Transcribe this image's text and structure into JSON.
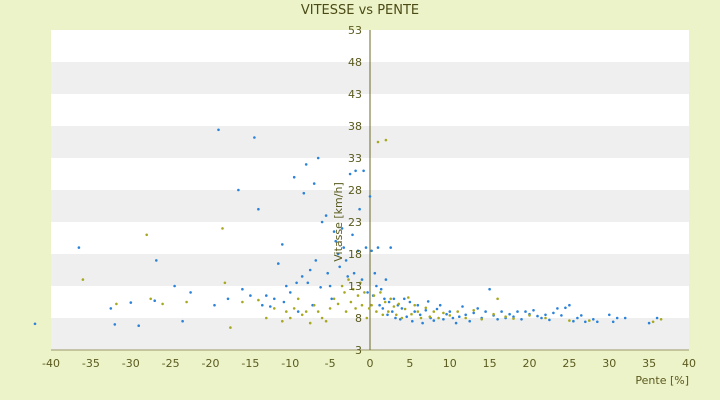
{
  "chart_data": {
    "type": "scatter",
    "title": "VITESSE vs PENTE",
    "xlabel": "Pente [%]",
    "ylabel": "Vitasse [km/h]",
    "xlim": [
      -40,
      40
    ],
    "ylim": [
      3,
      53
    ],
    "x_ticks": [
      -40,
      -35,
      -30,
      -25,
      -20,
      -15,
      -10,
      -5,
      0,
      5,
      10,
      15,
      20,
      25,
      30,
      35,
      40
    ],
    "y_ticks": [
      3,
      8,
      13,
      18,
      23,
      28,
      33,
      38,
      43,
      48,
      53
    ],
    "grid": "horizontal-bands",
    "legend": "none",
    "series": [
      {
        "color": "#2b82d9",
        "points": [
          [
            -42,
            7.1
          ],
          [
            -36.5,
            19
          ],
          [
            -32.5,
            9.5
          ],
          [
            -32,
            7
          ],
          [
            -30,
            10.4
          ],
          [
            -29,
            6.8
          ],
          [
            -27,
            10.7
          ],
          [
            -26.8,
            17
          ],
          [
            -24.5,
            13
          ],
          [
            -23.5,
            7.5
          ],
          [
            -22.5,
            12
          ],
          [
            -19.5,
            10
          ],
          [
            -19,
            37.4
          ],
          [
            -17.8,
            11
          ],
          [
            -16.5,
            28
          ],
          [
            -16,
            12.5
          ],
          [
            -15,
            11.5
          ],
          [
            -14.5,
            36.2
          ],
          [
            -14,
            25
          ],
          [
            -13.5,
            10
          ],
          [
            -13,
            11.5
          ],
          [
            -12.5,
            9.8
          ],
          [
            -12,
            11
          ],
          [
            -11.5,
            16.5
          ],
          [
            -11,
            19.5
          ],
          [
            -10.8,
            10.5
          ],
          [
            -10.5,
            13
          ],
          [
            -10,
            12
          ],
          [
            -9.5,
            30
          ],
          [
            -9.2,
            13.5
          ],
          [
            -9,
            9
          ],
          [
            -8.5,
            14.5
          ],
          [
            -8.3,
            27.5
          ],
          [
            -8,
            32
          ],
          [
            -7.8,
            13.5
          ],
          [
            -7.5,
            15.5
          ],
          [
            -7.2,
            10
          ],
          [
            -7,
            29
          ],
          [
            -6.8,
            17
          ],
          [
            -6.5,
            33
          ],
          [
            -6.2,
            12.8
          ],
          [
            -6,
            23
          ],
          [
            -5.5,
            24
          ],
          [
            -5.3,
            15
          ],
          [
            -5,
            13
          ],
          [
            -4.8,
            11
          ],
          [
            -4.5,
            21.5
          ],
          [
            -4.3,
            20
          ],
          [
            -4,
            18
          ],
          [
            -3.8,
            16
          ],
          [
            -3.5,
            22
          ],
          [
            -3.3,
            19
          ],
          [
            -3,
            17
          ],
          [
            -2.8,
            14.5
          ],
          [
            -2.5,
            30.5
          ],
          [
            -2.2,
            21
          ],
          [
            -2,
            15
          ],
          [
            -1.8,
            31
          ],
          [
            -1.5,
            18.5
          ],
          [
            -1.3,
            25
          ],
          [
            -1,
            14
          ],
          [
            -0.8,
            31
          ],
          [
            -0.5,
            19
          ],
          [
            -0.3,
            12
          ],
          [
            0,
            27
          ],
          [
            0.2,
            18.5
          ],
          [
            0.4,
            11.5
          ],
          [
            0.6,
            15
          ],
          [
            0.8,
            13
          ],
          [
            1,
            19
          ],
          [
            1.2,
            10
          ],
          [
            1.4,
            12.5
          ],
          [
            1.6,
            9.5
          ],
          [
            1.8,
            11
          ],
          [
            2,
            14
          ],
          [
            2.2,
            8.5
          ],
          [
            2.4,
            10.5
          ],
          [
            2.6,
            19
          ],
          [
            2.8,
            9
          ],
          [
            3,
            11
          ],
          [
            3.2,
            8
          ],
          [
            3.5,
            10
          ],
          [
            3.8,
            7.8
          ],
          [
            4,
            9.5
          ],
          [
            4.3,
            11
          ],
          [
            4.6,
            8.2
          ],
          [
            5,
            10.5
          ],
          [
            5.3,
            7.5
          ],
          [
            5.6,
            9
          ],
          [
            6,
            10
          ],
          [
            6.3,
            8.5
          ],
          [
            6.6,
            7.2
          ],
          [
            7,
            9.2
          ],
          [
            7.3,
            10.6
          ],
          [
            7.6,
            8
          ],
          [
            8,
            7.6
          ],
          [
            8.4,
            9.4
          ],
          [
            8.8,
            10
          ],
          [
            9.2,
            7.8
          ],
          [
            9.6,
            8.6
          ],
          [
            10,
            9
          ],
          [
            10.4,
            8
          ],
          [
            10.8,
            7.2
          ],
          [
            11.2,
            8.2
          ],
          [
            11.6,
            9.8
          ],
          [
            12,
            8.5
          ],
          [
            12.5,
            7.5
          ],
          [
            13,
            8.8
          ],
          [
            13.5,
            9.5
          ],
          [
            14,
            8
          ],
          [
            14.5,
            9
          ],
          [
            15,
            12.5
          ],
          [
            15.5,
            8.4
          ],
          [
            16,
            7.8
          ],
          [
            16.5,
            9
          ],
          [
            17,
            8
          ],
          [
            17.5,
            8.6
          ],
          [
            18,
            8.2
          ],
          [
            18.5,
            9
          ],
          [
            19,
            7.8
          ],
          [
            19.5,
            9
          ],
          [
            20,
            8.6
          ],
          [
            20.5,
            9.2
          ],
          [
            21,
            8.3
          ],
          [
            21.5,
            8
          ],
          [
            22,
            8.5
          ],
          [
            22.5,
            7.7
          ],
          [
            23,
            8.8
          ],
          [
            23.5,
            9.5
          ],
          [
            24,
            8.4
          ],
          [
            24.5,
            9.6
          ],
          [
            25,
            10
          ],
          [
            25.5,
            7.5
          ],
          [
            26,
            8
          ],
          [
            26.5,
            8.4
          ],
          [
            27,
            7.4
          ],
          [
            28,
            7.8
          ],
          [
            28.5,
            7.4
          ],
          [
            30,
            8.5
          ],
          [
            30.5,
            7.4
          ],
          [
            31,
            8
          ],
          [
            32,
            8
          ],
          [
            35,
            7.2
          ],
          [
            36,
            8
          ]
        ]
      },
      {
        "color": "#a8a820",
        "points": [
          [
            -36,
            14
          ],
          [
            -31.8,
            10.2
          ],
          [
            -28,
            21
          ],
          [
            -27.5,
            11
          ],
          [
            -26,
            10.2
          ],
          [
            -23,
            10.5
          ],
          [
            -18.5,
            22
          ],
          [
            -18.2,
            13.5
          ],
          [
            -17.5,
            6.5
          ],
          [
            -16,
            10.5
          ],
          [
            -14,
            10.8
          ],
          [
            -13,
            8
          ],
          [
            -12,
            9.5
          ],
          [
            -11,
            7.5
          ],
          [
            -10.5,
            9
          ],
          [
            -10,
            8
          ],
          [
            -9.5,
            9.5
          ],
          [
            -9,
            11
          ],
          [
            -8.5,
            8.5
          ],
          [
            -8,
            9
          ],
          [
            -7.5,
            7.2
          ],
          [
            -7,
            10
          ],
          [
            -6.5,
            9
          ],
          [
            -6,
            8
          ],
          [
            -5.5,
            7.5
          ],
          [
            -5,
            9.5
          ],
          [
            -4.5,
            11
          ],
          [
            -4,
            10.2
          ],
          [
            -3.5,
            13
          ],
          [
            -3.2,
            12
          ],
          [
            -3,
            9
          ],
          [
            -2.7,
            14
          ],
          [
            -2.4,
            10.5
          ],
          [
            -2.1,
            12.5
          ],
          [
            -1.8,
            9.5
          ],
          [
            -1.5,
            11.5
          ],
          [
            -1.2,
            13.5
          ],
          [
            -1,
            10
          ],
          [
            -0.7,
            12
          ],
          [
            -0.4,
            8
          ],
          [
            -0.1,
            9.5
          ],
          [
            0.2,
            10
          ],
          [
            0.5,
            11.5
          ],
          [
            0.8,
            9
          ],
          [
            1,
            35.5
          ],
          [
            1.3,
            12
          ],
          [
            1.6,
            8.5
          ],
          [
            1.9,
            10.5
          ],
          [
            2,
            35.8
          ],
          [
            2.3,
            9
          ],
          [
            2.6,
            11
          ],
          [
            3,
            9.8
          ],
          [
            3.3,
            8.5
          ],
          [
            3.6,
            10.2
          ],
          [
            4,
            8
          ],
          [
            4.4,
            9.4
          ],
          [
            4.8,
            11.2
          ],
          [
            5.2,
            8.6
          ],
          [
            5.6,
            10
          ],
          [
            6,
            9
          ],
          [
            6.4,
            8
          ],
          [
            7,
            9.6
          ],
          [
            7.5,
            8.2
          ],
          [
            8,
            9
          ],
          [
            8.6,
            8
          ],
          [
            9.2,
            8.8
          ],
          [
            10,
            8.4
          ],
          [
            11,
            9
          ],
          [
            12,
            8
          ],
          [
            13,
            9.2
          ],
          [
            14,
            7.8
          ],
          [
            15.5,
            8.6
          ],
          [
            16,
            11
          ],
          [
            17,
            8.2
          ],
          [
            18,
            7.9
          ],
          [
            20,
            8.4
          ],
          [
            22,
            8
          ],
          [
            25,
            7.6
          ],
          [
            27.5,
            7.6
          ],
          [
            35.5,
            7.4
          ],
          [
            36.5,
            7.8
          ]
        ]
      }
    ]
  }
}
